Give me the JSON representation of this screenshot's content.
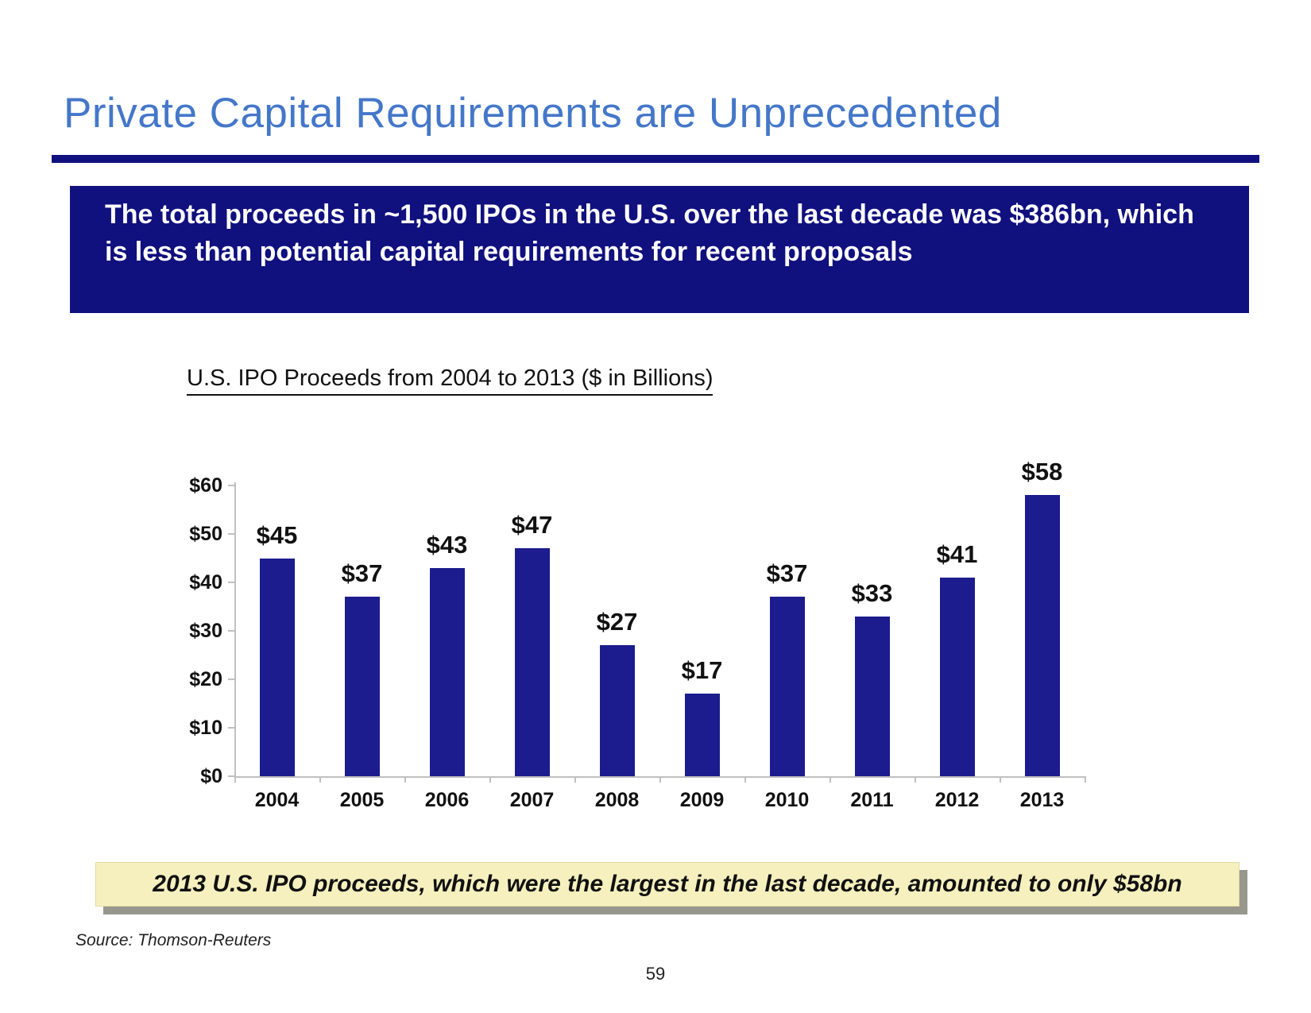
{
  "header": {
    "title": "Private Capital Requirements are Unprecedented",
    "accent_color": "#4477C9",
    "rule_color": "#10107E"
  },
  "callout": {
    "text": "The total proceeds in ~1,500 IPOs in the U.S. over the last decade was $386bn, which is less than potential capital requirements for recent proposals",
    "bg_color": "#10107E",
    "text_color": "#FFFFFF"
  },
  "chart_data": {
    "type": "bar",
    "title": "U.S. IPO Proceeds from 2004 to 2013 ($ in Billions)",
    "categories": [
      "2004",
      "2005",
      "2006",
      "2007",
      "2008",
      "2009",
      "2010",
      "2011",
      "2012",
      "2013"
    ],
    "values": [
      45,
      37,
      43,
      47,
      27,
      17,
      37,
      33,
      41,
      58
    ],
    "value_prefix": "$",
    "y_tick_labels": [
      "$0",
      "$10",
      "$20",
      "$30",
      "$40",
      "$50",
      "$60"
    ],
    "ylim": [
      0,
      60
    ],
    "xlabel": "",
    "ylabel": "",
    "grid": false,
    "legend": "none",
    "bar_color": "#1C1C8E",
    "axis_color": "#C0C0C0"
  },
  "footer": {
    "note": "2013 U.S. IPO proceeds, which were the largest in the last decade, amounted to only $58bn",
    "note_bg": "#F6F0BE",
    "source": "Source: Thomson-Reuters",
    "page_number": "59"
  }
}
